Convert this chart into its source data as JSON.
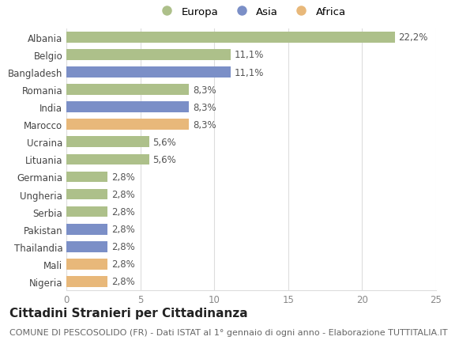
{
  "countries": [
    "Albania",
    "Belgio",
    "Bangladesh",
    "Romania",
    "India",
    "Marocco",
    "Ucraina",
    "Lituania",
    "Germania",
    "Ungheria",
    "Serbia",
    "Pakistan",
    "Thailandia",
    "Mali",
    "Nigeria"
  ],
  "values": [
    22.2,
    11.1,
    11.1,
    8.3,
    8.3,
    8.3,
    5.6,
    5.6,
    2.8,
    2.8,
    2.8,
    2.8,
    2.8,
    2.8,
    2.8
  ],
  "continents": [
    "Europa",
    "Europa",
    "Asia",
    "Europa",
    "Asia",
    "Africa",
    "Europa",
    "Europa",
    "Europa",
    "Europa",
    "Europa",
    "Asia",
    "Asia",
    "Africa",
    "Africa"
  ],
  "colors": {
    "Europa": "#adc08a",
    "Asia": "#7b8fc7",
    "Africa": "#e8b87a"
  },
  "legend_order": [
    "Europa",
    "Asia",
    "Africa"
  ],
  "title": "Cittadini Stranieri per Cittadinanza",
  "subtitle": "COMUNE DI PESCOSOLIDO (FR) - Dati ISTAT al 1° gennaio di ogni anno - Elaborazione TUTTITALIA.IT",
  "xlim": [
    0,
    25
  ],
  "xticks": [
    0,
    5,
    10,
    15,
    20,
    25
  ],
  "background_color": "#ffffff",
  "grid_color": "#dddddd",
  "label_fontsize": 8.5,
  "tick_fontsize": 8.5,
  "title_fontsize": 11,
  "subtitle_fontsize": 8
}
